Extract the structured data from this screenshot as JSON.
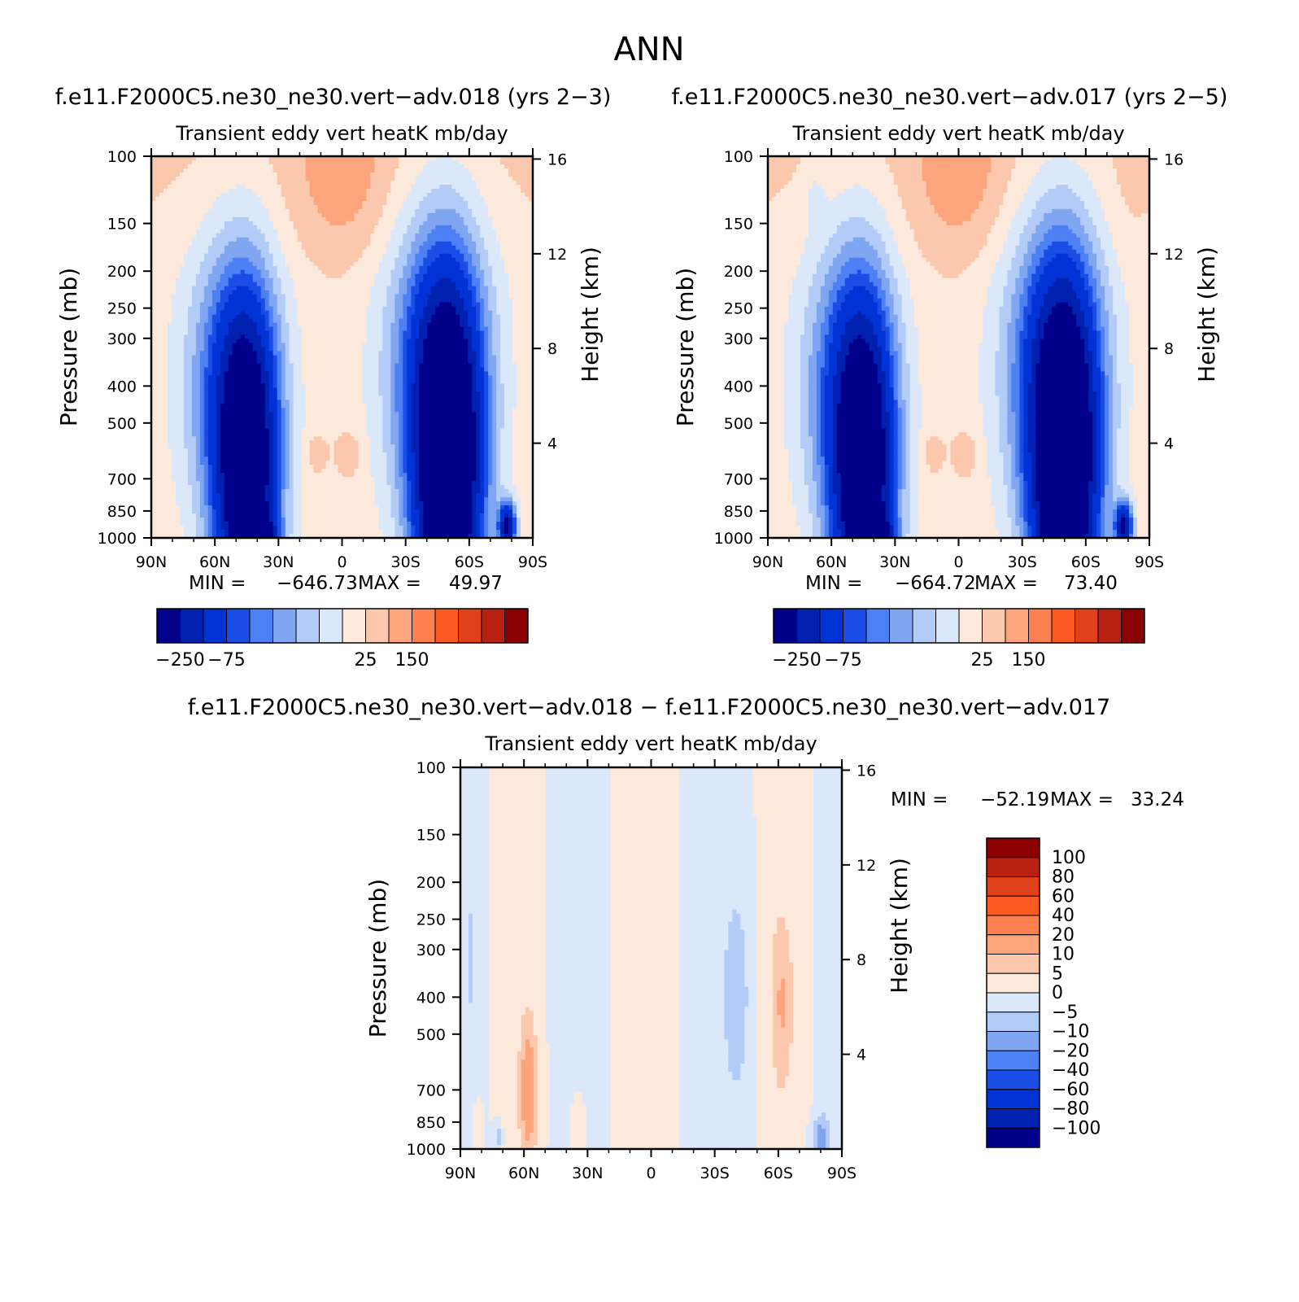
{
  "page_title": "ANN",
  "chart_data": [
    {
      "type": "heatmap",
      "title": "f.e11.F2000C5.ne30_ne30.vert−adv.018 (yrs 2−3)",
      "subtitle": "Transient eddy vert heatK mb/day",
      "xlabel": "",
      "ylabel": "Pressure (mb)",
      "ylabel_right": "Height (km)",
      "x_ticks": [
        "90N",
        "60N",
        "30N",
        "0",
        "30S",
        "60S",
        "90S"
      ],
      "y_ticks": [
        "100",
        "150",
        "200",
        "250",
        "300",
        "400",
        "500",
        "700",
        "850",
        "1000"
      ],
      "y_right_ticks": [
        "16",
        "12",
        "8",
        "4"
      ],
      "ylim": [
        1000,
        100
      ],
      "y_scale": "log",
      "stats": {
        "min_label": "MIN =",
        "min": "−646.73",
        "max_label": "MAX =",
        "max": "49.97"
      },
      "colorbar": {
        "orientation": "horizontal",
        "colors": [
          "#00008b",
          "#0020b0",
          "#0033d6",
          "#1a4de6",
          "#4d80f2",
          "#80a6f2",
          "#b3ccf7",
          "#dbe8fa",
          "#fde9dc",
          "#fcc8ad",
          "#fca47c",
          "#fc8050",
          "#fc5a20",
          "#e0401a",
          "#b82010",
          "#8b0000"
        ],
        "labels": [
          "−250",
          "−75",
          "25",
          "150"
        ]
      }
    },
    {
      "type": "heatmap",
      "title": "f.e11.F2000C5.ne30_ne30.vert−adv.017 (yrs 2−5)",
      "subtitle": "Transient eddy vert heatK mb/day",
      "xlabel": "",
      "ylabel": "Pressure (mb)",
      "ylabel_right": "Height (km)",
      "x_ticks": [
        "90N",
        "60N",
        "30N",
        "0",
        "30S",
        "60S",
        "90S"
      ],
      "y_ticks": [
        "100",
        "150",
        "200",
        "250",
        "300",
        "400",
        "500",
        "700",
        "850",
        "1000"
      ],
      "y_right_ticks": [
        "16",
        "12",
        "8",
        "4"
      ],
      "ylim": [
        1000,
        100
      ],
      "y_scale": "log",
      "stats": {
        "min_label": "MIN =",
        "min": "−664.72",
        "max_label": "MAX =",
        "max": "73.40"
      },
      "colorbar": {
        "orientation": "horizontal",
        "colors": [
          "#00008b",
          "#0020b0",
          "#0033d6",
          "#1a4de6",
          "#4d80f2",
          "#80a6f2",
          "#b3ccf7",
          "#dbe8fa",
          "#fde9dc",
          "#fcc8ad",
          "#fca47c",
          "#fc8050",
          "#fc5a20",
          "#e0401a",
          "#b82010",
          "#8b0000"
        ],
        "labels": [
          "−250",
          "−75",
          "25",
          "150"
        ]
      }
    },
    {
      "type": "heatmap",
      "title": "f.e11.F2000C5.ne30_ne30.vert−adv.018 − f.e11.F2000C5.ne30_ne30.vert−adv.017",
      "subtitle": "Transient eddy vert heatK mb/day",
      "xlabel": "",
      "ylabel": "Pressure (mb)",
      "ylabel_right": "Height (km)",
      "x_ticks": [
        "90N",
        "60N",
        "30N",
        "0",
        "30S",
        "60S",
        "90S"
      ],
      "y_ticks": [
        "100",
        "150",
        "200",
        "250",
        "300",
        "400",
        "500",
        "700",
        "850",
        "1000"
      ],
      "y_right_ticks": [
        "16",
        "12",
        "8",
        "4"
      ],
      "ylim": [
        1000,
        100
      ],
      "y_scale": "log",
      "stats": {
        "min_label": "MIN =",
        "min": "−52.19",
        "max_label": "MAX =",
        "max": "33.24"
      },
      "colorbar": {
        "orientation": "vertical",
        "colors": [
          "#00008b",
          "#0020b0",
          "#0033d6",
          "#1a4de6",
          "#4d80f2",
          "#80a6f2",
          "#b3ccf7",
          "#dbe8fa",
          "#fde9dc",
          "#fcc8ad",
          "#fca47c",
          "#fc8050",
          "#fc5a20",
          "#e0401a",
          "#b82010",
          "#8b0000"
        ],
        "labels": [
          "100",
          "80",
          "60",
          "40",
          "20",
          "10",
          "5",
          "0",
          "−5",
          "−10",
          "−20",
          "−40",
          "−60",
          "−80",
          "−100"
        ]
      }
    }
  ]
}
